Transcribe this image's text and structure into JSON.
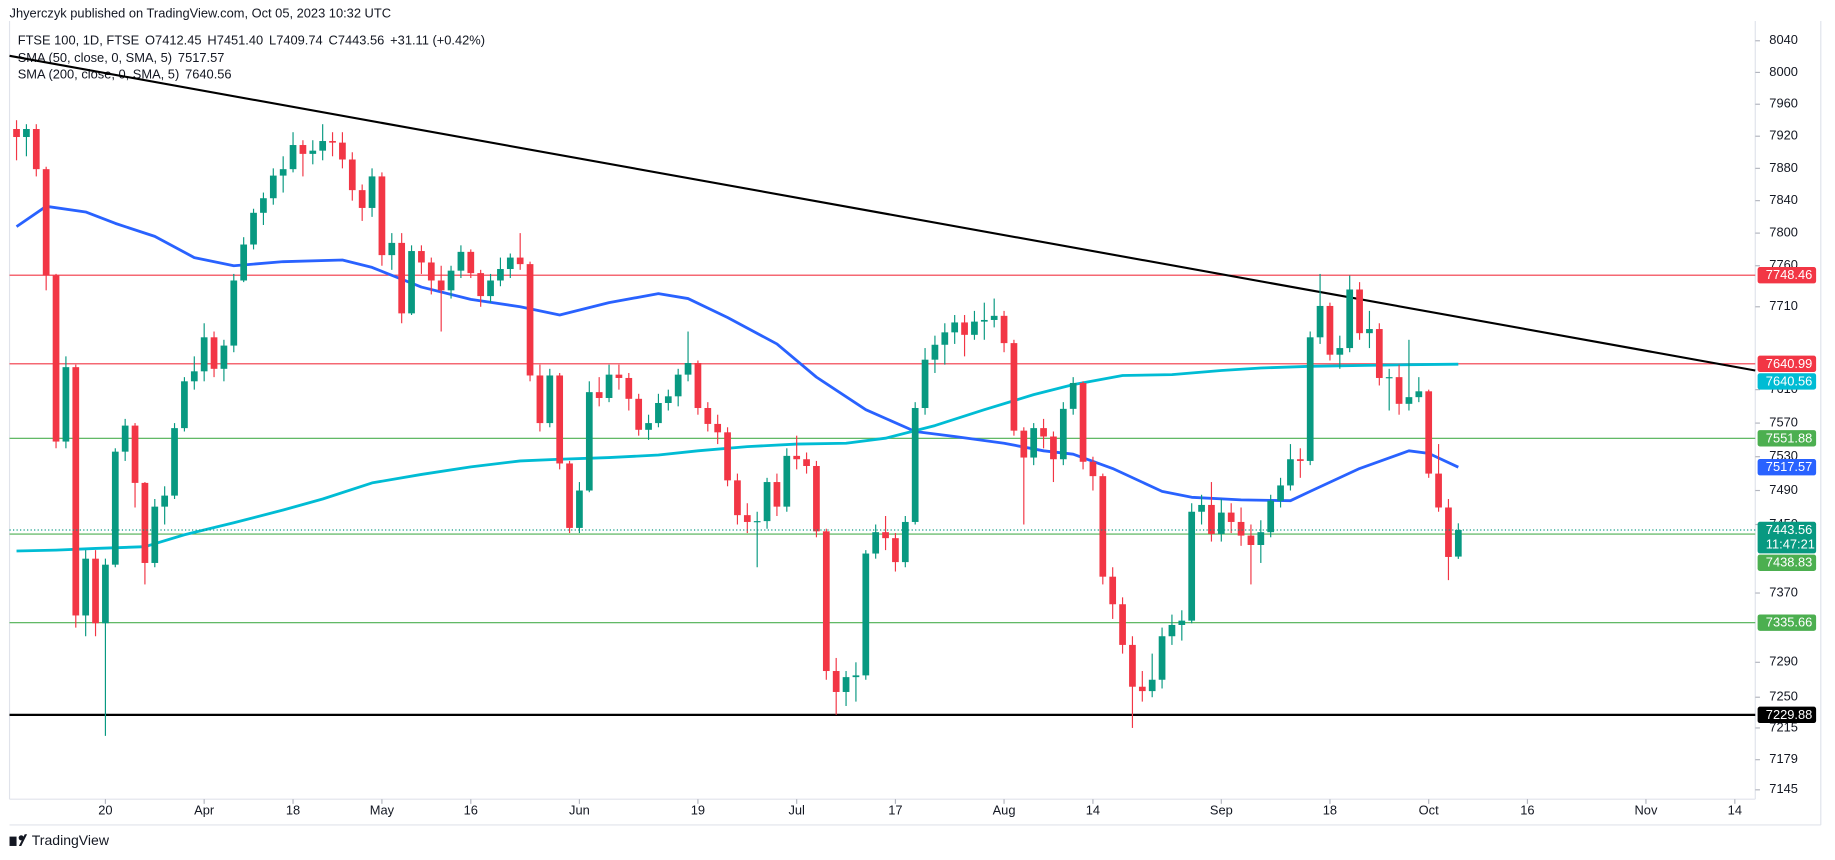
{
  "header": {
    "publisher": "Jhyerczyk published on TradingView.com, Oct 05, 2023 10:32 UTC"
  },
  "footer": {
    "brand": "TradingView"
  },
  "chart_data": {
    "type": "candlestick",
    "title": "FTSE 100, 1D, FTSE",
    "ohlc_legend": [
      "O7412.45",
      "H7451.40",
      "L7409.74",
      "C7443.56"
    ],
    "change": "+31.11 (+0.42%)",
    "countdown": "11:47:21",
    "log_scale": true,
    "grid": false,
    "up_color": "#089981",
    "down_color": "#f23645",
    "ohlc": [
      [
        7929,
        7940,
        7890,
        7919
      ],
      [
        7919,
        7935,
        7895,
        7929
      ],
      [
        7929,
        7935,
        7870,
        7879
      ],
      [
        7879,
        7882,
        7730,
        7748
      ],
      [
        7748,
        7750,
        7540,
        7548
      ],
      [
        7548,
        7650,
        7540,
        7637
      ],
      [
        7637,
        7640,
        7330,
        7344
      ],
      [
        7344,
        7420,
        7320,
        7410
      ],
      [
        7410,
        7420,
        7320,
        7335
      ],
      [
        7335,
        7410,
        7206,
        7403
      ],
      [
        7403,
        7540,
        7400,
        7536
      ],
      [
        7536,
        7575,
        7525,
        7567
      ],
      [
        7567,
        7570,
        7470,
        7499
      ],
      [
        7499,
        7500,
        7380,
        7405
      ],
      [
        7405,
        7480,
        7400,
        7471
      ],
      [
        7471,
        7495,
        7450,
        7484
      ],
      [
        7484,
        7570,
        7480,
        7564
      ],
      [
        7564,
        7625,
        7560,
        7620
      ],
      [
        7620,
        7650,
        7610,
        7632
      ],
      [
        7632,
        7690,
        7620,
        7673
      ],
      [
        7673,
        7680,
        7625,
        7635
      ],
      [
        7635,
        7670,
        7620,
        7663
      ],
      [
        7663,
        7750,
        7655,
        7742
      ],
      [
        7742,
        7795,
        7740,
        7786
      ],
      [
        7786,
        7830,
        7780,
        7825
      ],
      [
        7825,
        7850,
        7810,
        7843
      ],
      [
        7843,
        7880,
        7835,
        7871
      ],
      [
        7871,
        7895,
        7850,
        7879
      ],
      [
        7879,
        7925,
        7875,
        7909
      ],
      [
        7909,
        7915,
        7870,
        7898
      ],
      [
        7898,
        7915,
        7885,
        7902
      ],
      [
        7902,
        7935,
        7890,
        7914
      ],
      [
        7914,
        7925,
        7895,
        7912
      ],
      [
        7912,
        7925,
        7880,
        7891
      ],
      [
        7891,
        7900,
        7840,
        7853
      ],
      [
        7853,
        7860,
        7815,
        7831
      ],
      [
        7831,
        7880,
        7820,
        7870
      ],
      [
        7870,
        7875,
        7760,
        7773
      ],
      [
        7773,
        7800,
        7755,
        7788
      ],
      [
        7788,
        7800,
        7690,
        7702
      ],
      [
        7702,
        7785,
        7700,
        7778
      ],
      [
        7778,
        7785,
        7750,
        7764
      ],
      [
        7764,
        7770,
        7725,
        7742
      ],
      [
        7742,
        7760,
        7680,
        7730
      ],
      [
        7730,
        7760,
        7720,
        7754
      ],
      [
        7754,
        7785,
        7745,
        7777
      ],
      [
        7777,
        7780,
        7745,
        7751
      ],
      [
        7751,
        7755,
        7710,
        7723
      ],
      [
        7723,
        7750,
        7715,
        7742
      ],
      [
        7742,
        7770,
        7735,
        7756
      ],
      [
        7756,
        7775,
        7745,
        7770
      ],
      [
        7770,
        7800,
        7755,
        7762
      ],
      [
        7762,
        7765,
        7620,
        7627
      ],
      [
        7627,
        7640,
        7560,
        7570
      ],
      [
        7570,
        7635,
        7565,
        7627
      ],
      [
        7627,
        7630,
        7515,
        7522
      ],
      [
        7522,
        7525,
        7440,
        7446
      ],
      [
        7446,
        7500,
        7440,
        7490
      ],
      [
        7490,
        7620,
        7488,
        7607
      ],
      [
        7607,
        7625,
        7590,
        7600
      ],
      [
        7600,
        7640,
        7595,
        7628
      ],
      [
        7628,
        7640,
        7610,
        7624
      ],
      [
        7624,
        7630,
        7585,
        7599
      ],
      [
        7599,
        7605,
        7555,
        7562
      ],
      [
        7562,
        7580,
        7550,
        7570
      ],
      [
        7570,
        7605,
        7565,
        7594
      ],
      [
        7594,
        7610,
        7585,
        7602
      ],
      [
        7602,
        7635,
        7590,
        7628
      ],
      [
        7628,
        7680,
        7620,
        7642
      ],
      [
        7642,
        7645,
        7580,
        7588
      ],
      [
        7588,
        7595,
        7560,
        7569
      ],
      [
        7569,
        7580,
        7545,
        7559
      ],
      [
        7559,
        7565,
        7495,
        7502
      ],
      [
        7502,
        7510,
        7450,
        7461
      ],
      [
        7461,
        7475,
        7440,
        7453
      ],
      [
        7453,
        7465,
        7400,
        7454
      ],
      [
        7454,
        7505,
        7445,
        7500
      ],
      [
        7500,
        7510,
        7460,
        7471
      ],
      [
        7471,
        7540,
        7465,
        7531
      ],
      [
        7531,
        7555,
        7515,
        7527
      ],
      [
        7527,
        7535,
        7510,
        7519
      ],
      [
        7519,
        7525,
        7435,
        7442
      ],
      [
        7442,
        7445,
        7270,
        7280
      ],
      [
        7280,
        7295,
        7230,
        7256
      ],
      [
        7256,
        7280,
        7240,
        7273
      ],
      [
        7273,
        7290,
        7245,
        7275
      ],
      [
        7275,
        7420,
        7270,
        7416
      ],
      [
        7416,
        7450,
        7410,
        7441
      ],
      [
        7441,
        7460,
        7420,
        7434
      ],
      [
        7434,
        7440,
        7395,
        7406
      ],
      [
        7406,
        7460,
        7400,
        7453
      ],
      [
        7453,
        7595,
        7450,
        7588
      ],
      [
        7588,
        7660,
        7580,
        7646
      ],
      [
        7646,
        7675,
        7630,
        7664
      ],
      [
        7664,
        7690,
        7640,
        7679
      ],
      [
        7679,
        7700,
        7665,
        7691
      ],
      [
        7691,
        7700,
        7650,
        7676
      ],
      [
        7676,
        7705,
        7670,
        7692
      ],
      [
        7692,
        7715,
        7670,
        7694
      ],
      [
        7694,
        7720,
        7685,
        7699
      ],
      [
        7699,
        7705,
        7655,
        7666
      ],
      [
        7666,
        7670,
        7555,
        7561
      ],
      [
        7561,
        7565,
        7450,
        7529
      ],
      [
        7529,
        7570,
        7520,
        7564
      ],
      [
        7564,
        7575,
        7540,
        7554
      ],
      [
        7554,
        7560,
        7500,
        7527
      ],
      [
        7527,
        7595,
        7520,
        7587
      ],
      [
        7587,
        7625,
        7580,
        7618
      ],
      [
        7618,
        7620,
        7515,
        7524
      ],
      [
        7524,
        7530,
        7490,
        7507
      ],
      [
        7507,
        7510,
        7380,
        7389
      ],
      [
        7389,
        7400,
        7340,
        7357
      ],
      [
        7357,
        7365,
        7300,
        7310
      ],
      [
        7310,
        7320,
        7215,
        7262
      ],
      [
        7262,
        7280,
        7245,
        7257
      ],
      [
        7257,
        7300,
        7250,
        7270
      ],
      [
        7270,
        7330,
        7260,
        7320
      ],
      [
        7320,
        7345,
        7310,
        7333
      ],
      [
        7333,
        7350,
        7315,
        7338
      ],
      [
        7338,
        7475,
        7335,
        7465
      ],
      [
        7465,
        7485,
        7450,
        7473
      ],
      [
        7473,
        7500,
        7430,
        7439
      ],
      [
        7439,
        7480,
        7430,
        7464
      ],
      [
        7464,
        7475,
        7440,
        7453
      ],
      [
        7453,
        7470,
        7425,
        7437
      ],
      [
        7437,
        7450,
        7380,
        7426
      ],
      [
        7426,
        7455,
        7405,
        7441
      ],
      [
        7441,
        7485,
        7435,
        7478
      ],
      [
        7478,
        7505,
        7470,
        7496
      ],
      [
        7496,
        7545,
        7490,
        7527
      ],
      [
        7527,
        7540,
        7505,
        7525
      ],
      [
        7525,
        7680,
        7520,
        7673
      ],
      [
        7673,
        7750,
        7665,
        7711
      ],
      [
        7711,
        7715,
        7645,
        7652
      ],
      [
        7652,
        7675,
        7635,
        7660
      ],
      [
        7660,
        7748,
        7655,
        7731
      ],
      [
        7731,
        7740,
        7670,
        7678
      ],
      [
        7678,
        7705,
        7660,
        7683
      ],
      [
        7683,
        7690,
        7615,
        7624
      ],
      [
        7624,
        7635,
        7585,
        7625
      ],
      [
        7625,
        7640,
        7580,
        7593
      ],
      [
        7593,
        7670,
        7585,
        7601
      ],
      [
        7601,
        7625,
        7595,
        7608
      ],
      [
        7608,
        7610,
        7505,
        7510
      ],
      [
        7510,
        7545,
        7465,
        7470
      ],
      [
        7470,
        7480,
        7385,
        7412
      ],
      [
        7412.45,
        7451.4,
        7409.74,
        7443.56
      ]
    ],
    "series": [
      {
        "name": "SMA (50, close, 0, SMA, 5)",
        "color": "#2962ff",
        "x": [
          0,
          3,
          7,
          10,
          14,
          18,
          22,
          27,
          33,
          36,
          41,
          46,
          51,
          55,
          60,
          65,
          68,
          72,
          77,
          81,
          86,
          91,
          95,
          100,
          104,
          107,
          111,
          116,
          119,
          124,
          129,
          131,
          136,
          141,
          143,
          146
        ],
        "values": [
          7808,
          7833,
          7826,
          7812,
          7796,
          7770,
          7760,
          7765,
          7767,
          7758,
          7734,
          7719,
          7710,
          7700,
          7715,
          7726,
          7720,
          7697,
          7665,
          7625,
          7586,
          7560,
          7554,
          7546,
          7537,
          7533,
          7516,
          7489,
          7482,
          7479,
          7478,
          7489,
          7516,
          7537,
          7534,
          7517.57
        ]
      },
      {
        "name": "SMA (200, close, 0, SMA, 5)",
        "color": "#00bcd4",
        "x": [
          0,
          4,
          8,
          13,
          17,
          22,
          27,
          31,
          36,
          41,
          46,
          51,
          55,
          60,
          65,
          69,
          74,
          79,
          84,
          88,
          93,
          98,
          103,
          107,
          112,
          117,
          122,
          126,
          131,
          136,
          141,
          146
        ],
        "values": [
          7419,
          7420,
          7422,
          7424,
          7438,
          7452,
          7467,
          7480,
          7499,
          7509,
          7518,
          7525,
          7527,
          7529,
          7532,
          7537,
          7542,
          7545,
          7546,
          7552,
          7567,
          7586,
          7604,
          7616,
          7627,
          7628,
          7633,
          7636,
          7638,
          7639,
          7640,
          7640.56
        ]
      }
    ],
    "trendline": {
      "color": "#000000",
      "x": [
        -0.71,
        176.07
      ],
      "values": [
        8021,
        7633
      ]
    },
    "levels": [
      {
        "value": 7748.46,
        "color": "#f23645"
      },
      {
        "value": 7640.99,
        "color": "#f23645"
      },
      {
        "value": 7551.88,
        "color": "#4caf50"
      },
      {
        "value": 7438.83,
        "color": "#4caf50"
      },
      {
        "value": 7335.66,
        "color": "#4caf50"
      },
      {
        "value": 7229.88,
        "color": "#000000"
      }
    ],
    "xlim": [
      -0.71,
      176.07
    ],
    "xticks": [
      {
        "value": 9,
        "label": "20"
      },
      {
        "value": 19,
        "label": "Apr"
      },
      {
        "value": 28,
        "label": "18"
      },
      {
        "value": 37,
        "label": "May"
      },
      {
        "value": 46,
        "label": "16"
      },
      {
        "value": 57,
        "label": "Jun"
      },
      {
        "value": 69,
        "label": "19"
      },
      {
        "value": 79,
        "label": "Jul"
      },
      {
        "value": 89,
        "label": "17"
      },
      {
        "value": 100,
        "label": "Aug"
      },
      {
        "value": 109,
        "label": "14"
      },
      {
        "value": 122,
        "label": "Sep"
      },
      {
        "value": 133,
        "label": "18"
      },
      {
        "value": 143,
        "label": "Oct"
      },
      {
        "value": 153,
        "label": "16"
      },
      {
        "value": 165,
        "label": "Nov"
      },
      {
        "value": 174,
        "label": "14"
      }
    ],
    "ylim": [
      7134.5,
      8065
    ],
    "yticks": [
      8040,
      8000,
      7960,
      7920,
      7880,
      7840,
      7800,
      7760,
      7710,
      7610,
      7570,
      7530,
      7490,
      7450,
      7370,
      7290,
      7250,
      7215,
      7179,
      7145
    ]
  }
}
